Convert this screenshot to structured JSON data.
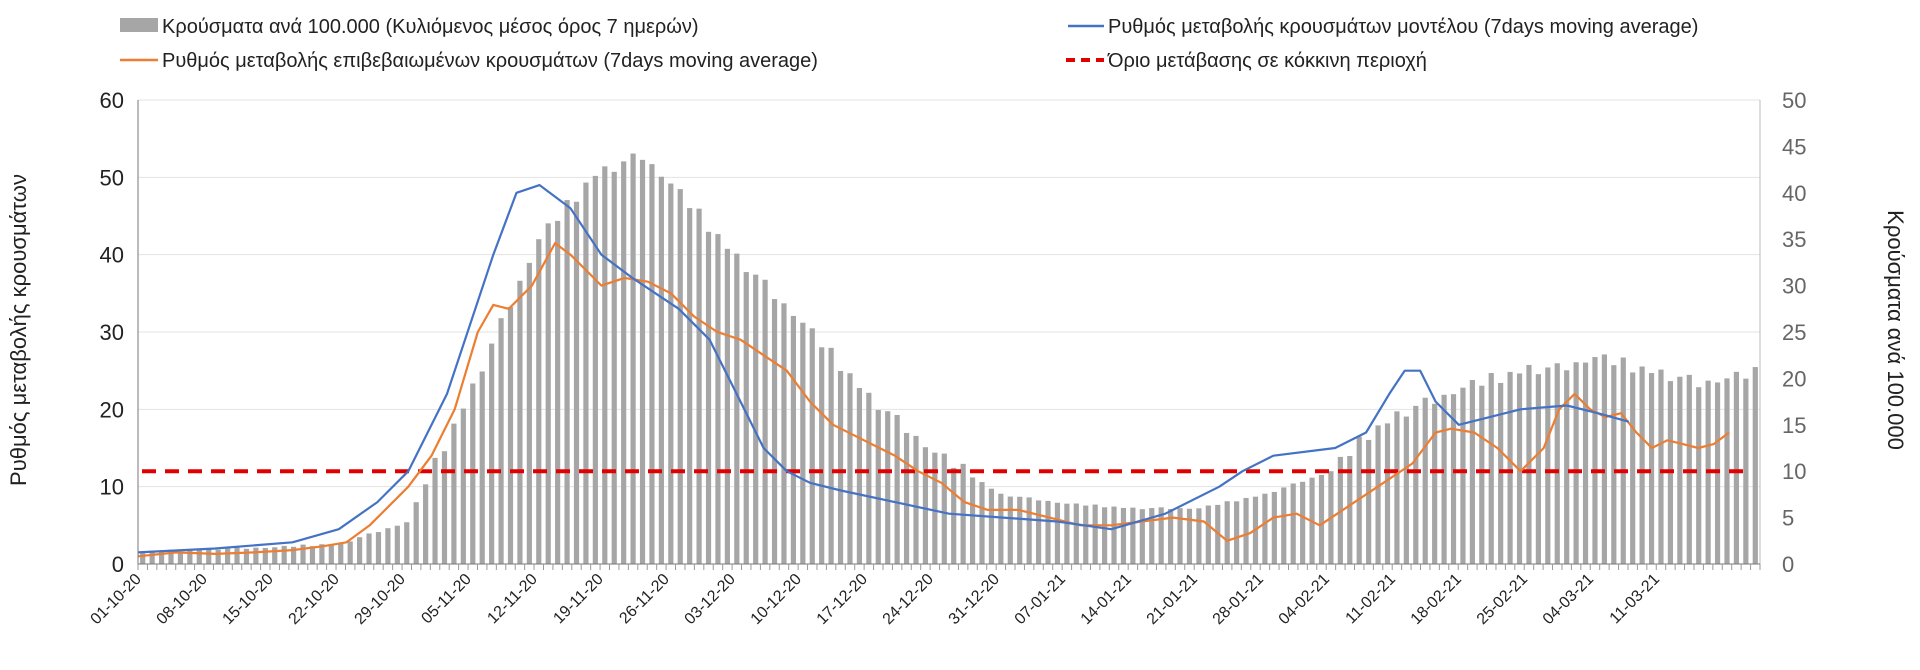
{
  "chart_data": {
    "type": "bar+line",
    "title": "",
    "ylabel_left": "Ρυθμός μεταβολής κρουσμάτων",
    "ylabel_right": "Κρούσματα ανά 100.000",
    "ylim_left": [
      0,
      60
    ],
    "ylim_right": [
      0,
      50
    ],
    "yticks_left": [
      "0",
      "10",
      "20",
      "30",
      "40",
      "50",
      "60"
    ],
    "yticks_right": [
      "0",
      "5",
      "10",
      "15",
      "20",
      "25",
      "30",
      "35",
      "40",
      "45",
      "50"
    ],
    "x_tick_labels": [
      "01-10-20",
      "08-10-20",
      "15-10-20",
      "22-10-20",
      "29-10-20",
      "05-11-20",
      "12-11-20",
      "19-11-20",
      "26-11-20",
      "03-12-20",
      "10-12-20",
      "17-12-20",
      "24-12-20",
      "31-12-20",
      "07-01-21",
      "14-01-21",
      "21-01-21",
      "28-01-21",
      "04-02-21",
      "11-02-21",
      "18-02-21",
      "25-02-21",
      "04-03-21",
      "11-03-21"
    ],
    "num_days": 172,
    "legend": {
      "bars": "Κρούσματα ανά 100.000 (Κυλιόμενος μέσος όρος 7 ημερών)",
      "model": "Ρυθμός μεταβολής κρουσμάτων μοντέλου (7days moving average)",
      "confirmed": "Ρυθμός μεταβολής επιβεβαιωμένων κρουσμάτων (7days moving average)",
      "threshold": "Όριο μετάβασης σε κόκκινη περιοχή"
    },
    "threshold_value_left_axis": 12,
    "colors": {
      "bars": "#a6a6a6",
      "model": "#4472c4",
      "confirmed": "#ed7d31",
      "threshold": "#e00000"
    },
    "bars_key_points": [
      [
        0,
        1.3
      ],
      [
        7,
        1.6
      ],
      [
        14,
        1.8
      ],
      [
        21,
        2.2
      ],
      [
        28,
        4.5
      ],
      [
        35,
        19
      ],
      [
        42,
        35
      ],
      [
        48,
        42
      ],
      [
        53,
        44
      ],
      [
        56,
        41
      ],
      [
        63,
        33
      ],
      [
        70,
        26
      ],
      [
        77,
        18
      ],
      [
        84,
        12
      ],
      [
        91,
        7.5
      ],
      [
        98,
        6.5
      ],
      [
        105,
        6.0
      ],
      [
        112,
        6.0
      ],
      [
        119,
        7.5
      ],
      [
        126,
        10
      ],
      [
        130,
        14
      ],
      [
        133,
        16
      ],
      [
        140,
        19
      ],
      [
        147,
        21
      ],
      [
        150,
        21
      ],
      [
        154,
        22.3
      ],
      [
        161,
        20.5
      ],
      [
        165,
        19.5
      ],
      [
        171,
        20.5
      ]
    ],
    "model_key_points": [
      [
        0,
        1.5
      ],
      [
        10,
        2.0
      ],
      [
        20,
        2.8
      ],
      [
        26,
        4.5
      ],
      [
        31,
        8
      ],
      [
        35,
        12
      ],
      [
        40,
        22
      ],
      [
        46,
        40
      ],
      [
        49,
        48
      ],
      [
        52,
        49
      ],
      [
        56,
        46
      ],
      [
        60,
        40
      ],
      [
        64,
        37
      ],
      [
        70,
        33
      ],
      [
        74,
        29
      ],
      [
        78,
        21
      ],
      [
        81,
        15
      ],
      [
        84,
        12
      ],
      [
        87,
        10.5
      ],
      [
        91,
        9.5
      ],
      [
        98,
        8.0
      ],
      [
        105,
        6.5
      ],
      [
        112,
        6.0
      ],
      [
        119,
        5.5
      ],
      [
        126,
        4.5
      ],
      [
        133,
        6.5
      ],
      [
        140,
        10
      ],
      [
        143,
        12
      ],
      [
        147,
        14
      ],
      [
        155,
        15
      ],
      [
        159,
        17
      ],
      [
        162,
        22
      ],
      [
        164,
        25
      ],
      [
        166,
        25
      ],
      [
        168,
        21
      ],
      [
        171,
        18
      ],
      [
        175,
        19
      ],
      [
        179,
        20
      ],
      [
        185,
        20.5
      ],
      [
        189,
        19.5
      ],
      [
        193,
        18.4
      ]
    ],
    "confirmed_key_points": [
      [
        0,
        1
      ],
      [
        5,
        1.5
      ],
      [
        10,
        1.3
      ],
      [
        15,
        1.5
      ],
      [
        20,
        1.8
      ],
      [
        24,
        2.3
      ],
      [
        27,
        2.8
      ],
      [
        30,
        5
      ],
      [
        33,
        8
      ],
      [
        35,
        10
      ],
      [
        38,
        14
      ],
      [
        41,
        20
      ],
      [
        44,
        30
      ],
      [
        46,
        33.5
      ],
      [
        48,
        33
      ],
      [
        51,
        36
      ],
      [
        54,
        41.5
      ],
      [
        56,
        40
      ],
      [
        58,
        38
      ],
      [
        60,
        36
      ],
      [
        63,
        37
      ],
      [
        66,
        36.5
      ],
      [
        69,
        35
      ],
      [
        72,
        32
      ],
      [
        75,
        30
      ],
      [
        78,
        29
      ],
      [
        81,
        27
      ],
      [
        84,
        25
      ],
      [
        87,
        21
      ],
      [
        90,
        18
      ],
      [
        94,
        16
      ],
      [
        98,
        14
      ],
      [
        101,
        12
      ],
      [
        104,
        10.5
      ],
      [
        107,
        8
      ],
      [
        110,
        7
      ],
      [
        114,
        7
      ],
      [
        118,
        6
      ],
      [
        122,
        5
      ],
      [
        126,
        5
      ],
      [
        130,
        5.5
      ],
      [
        134,
        6
      ],
      [
        138,
        5.5
      ],
      [
        141,
        3
      ],
      [
        144,
        4
      ],
      [
        147,
        6
      ],
      [
        150,
        6.5
      ],
      [
        153,
        5
      ],
      [
        156,
        7
      ],
      [
        159,
        9
      ],
      [
        162,
        11
      ],
      [
        165,
        13
      ],
      [
        168,
        17
      ],
      [
        170,
        17.5
      ],
      [
        173,
        17
      ],
      [
        176,
        15
      ],
      [
        179,
        12
      ],
      [
        182,
        15
      ],
      [
        184,
        20
      ],
      [
        186,
        22
      ],
      [
        188,
        20
      ],
      [
        190,
        19
      ],
      [
        192,
        19.5
      ],
      [
        194,
        17
      ],
      [
        196,
        15
      ],
      [
        198,
        16
      ],
      [
        200,
        15.5
      ],
      [
        202,
        15
      ],
      [
        204,
        15.5
      ],
      [
        206,
        17
      ]
    ]
  }
}
